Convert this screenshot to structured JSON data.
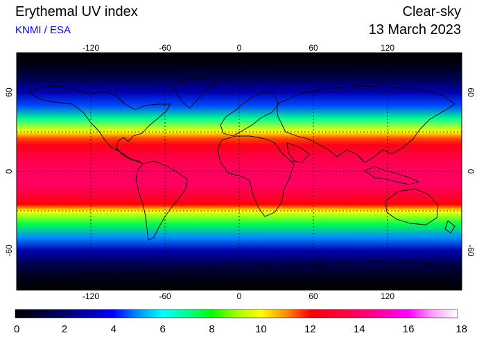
{
  "header": {
    "title": "Erythemal UV index",
    "credit": "KNMI / ESA",
    "sky_condition": "Clear-sky",
    "date": "13 March 2023"
  },
  "map": {
    "projection": "equirectangular",
    "lon_range": [
      -180,
      180
    ],
    "lat_range": [
      -90,
      90
    ],
    "lon_ticks": [
      "-120",
      "-60",
      "0",
      "60",
      "120"
    ],
    "lat_ticks": [
      "60",
      "0",
      "-60"
    ],
    "uv_index_by_latitude": [
      {
        "lat": 90,
        "uv": 0
      },
      {
        "lat": 80,
        "uv": 0.5
      },
      {
        "lat": 70,
        "uv": 1.5
      },
      {
        "lat": 60,
        "uv": 3
      },
      {
        "lat": 50,
        "uv": 4.5
      },
      {
        "lat": 40,
        "uv": 7
      },
      {
        "lat": 30,
        "uv": 10
      },
      {
        "lat": 25,
        "uv": 11.5
      },
      {
        "lat": 20,
        "uv": 12.5
      },
      {
        "lat": 10,
        "uv": 13.5
      },
      {
        "lat": 0,
        "uv": 14
      },
      {
        "lat": -10,
        "uv": 14
      },
      {
        "lat": -20,
        "uv": 13
      },
      {
        "lat": -25,
        "uv": 12
      },
      {
        "lat": -30,
        "uv": 10
      },
      {
        "lat": -40,
        "uv": 7.5
      },
      {
        "lat": -50,
        "uv": 5
      },
      {
        "lat": -60,
        "uv": 3
      },
      {
        "lat": -70,
        "uv": 1.5
      },
      {
        "lat": -80,
        "uv": 0.5
      },
      {
        "lat": -90,
        "uv": 0
      }
    ]
  },
  "colorbar": {
    "min": 0,
    "max": 18,
    "labels": [
      "0",
      "2",
      "4",
      "6",
      "8",
      "10",
      "12",
      "14",
      "16",
      "18"
    ],
    "stops": [
      {
        "v": 0,
        "color": "#000000"
      },
      {
        "v": 2,
        "color": "#00006a"
      },
      {
        "v": 4,
        "color": "#0000ff"
      },
      {
        "v": 5,
        "color": "#0090ff"
      },
      {
        "v": 6,
        "color": "#00ffff"
      },
      {
        "v": 7,
        "color": "#00ff90"
      },
      {
        "v": 8,
        "color": "#00ff00"
      },
      {
        "v": 9,
        "color": "#a0ff00"
      },
      {
        "v": 10,
        "color": "#ffff00"
      },
      {
        "v": 11,
        "color": "#ff9000"
      },
      {
        "v": 12,
        "color": "#ff0000"
      },
      {
        "v": 14,
        "color": "#ff0060"
      },
      {
        "v": 16,
        "color": "#ff00ff"
      },
      {
        "v": 17,
        "color": "#ffa0ff"
      },
      {
        "v": 18,
        "color": "#ffffff"
      }
    ]
  }
}
